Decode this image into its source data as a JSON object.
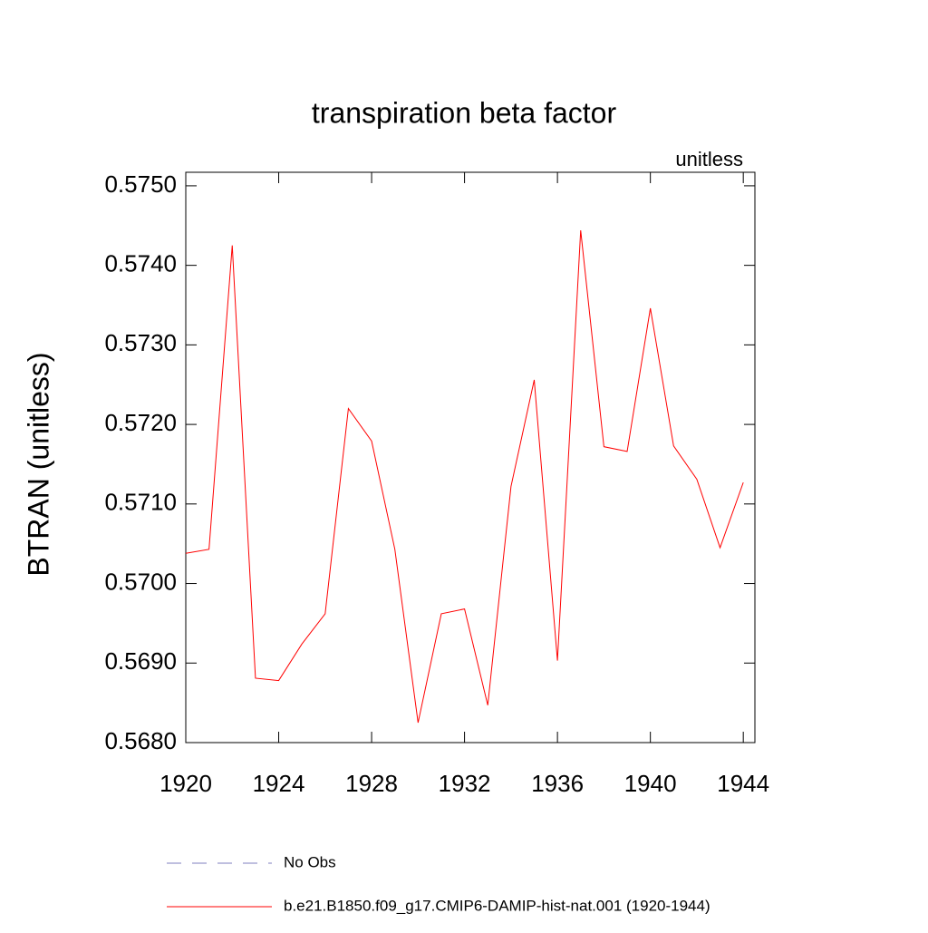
{
  "chart_data": {
    "type": "line",
    "title": "transpiration beta factor",
    "subtitle_right": "unitless",
    "y_label": "BTRAN  (unitless)",
    "x": [
      1920,
      1921,
      1922,
      1923,
      1924,
      1925,
      1926,
      1927,
      1928,
      1929,
      1930,
      1931,
      1932,
      1933,
      1934,
      1935,
      1936,
      1937,
      1938,
      1939,
      1940,
      1941,
      1942,
      1943,
      1944
    ],
    "series": [
      {
        "name": "No Obs",
        "color": "#7f7fbf",
        "dash": true,
        "values": [
          null,
          null,
          null,
          null,
          null,
          null,
          null,
          null,
          null,
          null,
          null,
          null,
          null,
          null,
          null,
          null,
          null,
          null,
          null,
          null,
          null,
          null,
          null,
          null,
          null
        ]
      },
      {
        "name": "b.e21.B1850.f09_g17.CMIP6-DAMIP-hist-nat.001 (1920-1944)",
        "color": "#ff0000",
        "dash": false,
        "values": [
          0.57038,
          0.57043,
          0.57425,
          0.56881,
          0.56878,
          0.56924,
          0.56962,
          0.5722,
          0.57179,
          0.57043,
          0.56825,
          0.56962,
          0.56968,
          0.56847,
          0.57122,
          0.57256,
          0.56903,
          0.57444,
          0.57172,
          0.57166,
          0.57346,
          0.57173,
          0.57131,
          0.57045,
          0.57127
        ]
      }
    ],
    "xlim": [
      1920,
      1944.5
    ],
    "ylim": [
      0.568,
      0.57517
    ],
    "xticks": [
      1920,
      1924,
      1928,
      1932,
      1936,
      1940,
      1944
    ],
    "yticks": [
      {
        "value": 0.568,
        "label": "0.5680"
      },
      {
        "value": 0.569,
        "label": "0.5690"
      },
      {
        "value": 0.57,
        "label": "0.5700"
      },
      {
        "value": 0.571,
        "label": "0.5710"
      },
      {
        "value": 0.572,
        "label": "0.5720"
      },
      {
        "value": 0.573,
        "label": "0.5730"
      },
      {
        "value": 0.574,
        "label": "0.5740"
      },
      {
        "value": 0.575,
        "label": "0.5750"
      }
    ]
  }
}
